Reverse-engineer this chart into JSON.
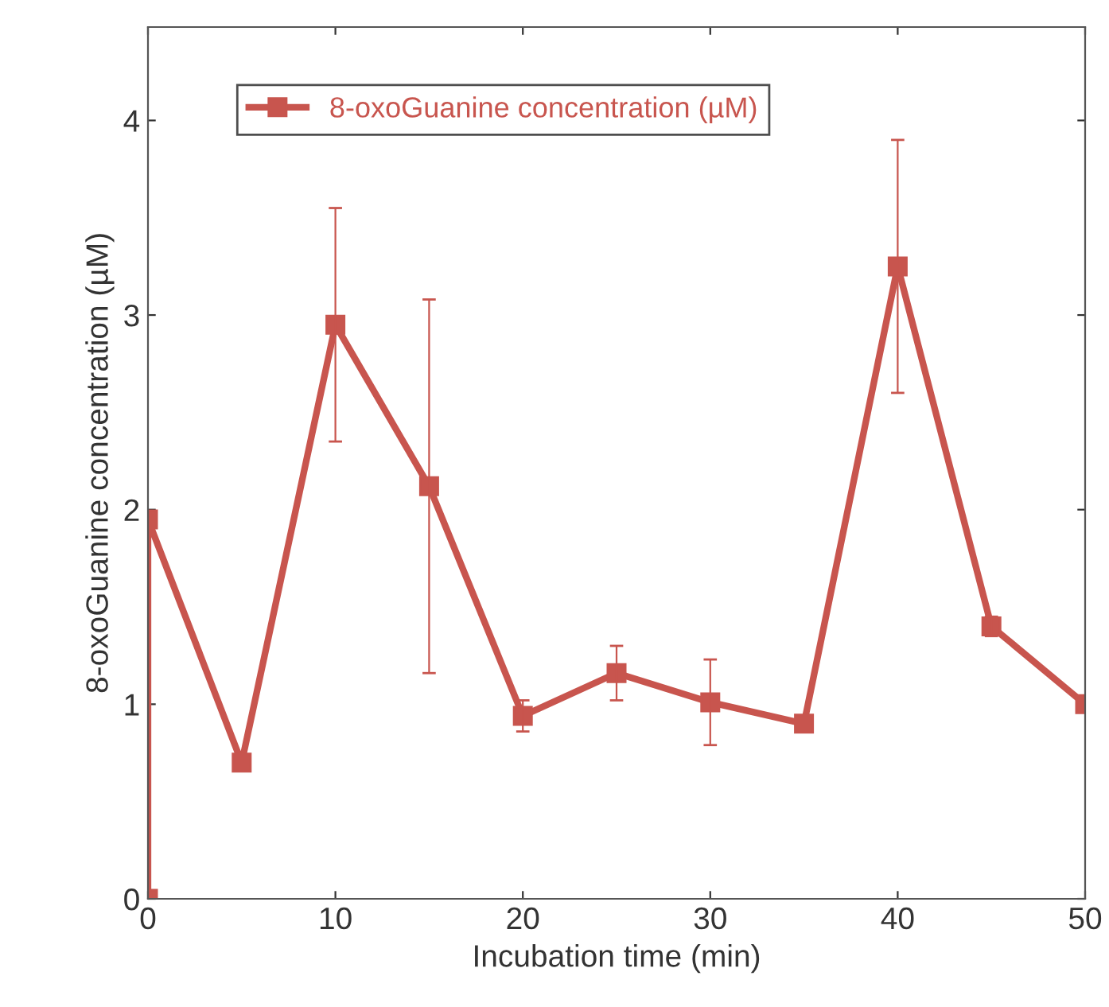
{
  "chart_data": {
    "type": "line",
    "xlabel": "Incubation time (min)",
    "ylabel": "8-oxoGuanine concentration (µM)",
    "x": [
      0,
      0,
      5,
      10,
      15,
      20,
      25,
      30,
      35,
      40,
      45,
      50
    ],
    "series": [
      {
        "name": "8-oxoGuanine concentration (µM)",
        "color": "#c8554e",
        "values": [
          0,
          1.95,
          0.7,
          2.95,
          2.12,
          0.94,
          1.16,
          1.01,
          0.9,
          3.25,
          1.4,
          1.0
        ],
        "errors": [
          null,
          null,
          null,
          0.6,
          0.96,
          0.08,
          0.14,
          0.22,
          null,
          0.65,
          0.05,
          null
        ]
      }
    ],
    "xlim": [
      0,
      50
    ],
    "ylim": [
      0,
      4.48
    ],
    "xticks": [
      0,
      10,
      20,
      30,
      40,
      50
    ],
    "yticks": [
      0,
      1,
      2,
      3,
      4
    ],
    "grid": false,
    "legend": "top left",
    "marker": "square",
    "line_style": "solid"
  }
}
